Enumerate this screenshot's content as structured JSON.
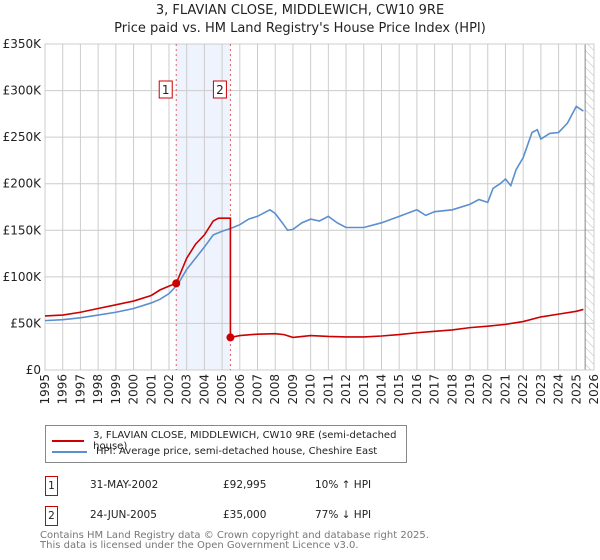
{
  "chart_data": {
    "type": "line",
    "title": "3, FLAVIAN CLOSE, MIDDLEWICH, CW10 9RE",
    "subtitle": "Price paid vs. HM Land Registry's House Price Index (HPI)",
    "xlim": [
      1995,
      2026
    ],
    "ylim": [
      0,
      350000
    ],
    "x_ticks": [
      "1995",
      "1996",
      "1997",
      "1998",
      "1999",
      "2000",
      "2001",
      "2002",
      "2003",
      "2004",
      "2005",
      "2006",
      "2007",
      "2008",
      "2009",
      "2010",
      "2011",
      "2012",
      "2013",
      "2014",
      "2015",
      "2016",
      "2017",
      "2018",
      "2019",
      "2020",
      "2021",
      "2022",
      "2023",
      "2024",
      "2025",
      "2026"
    ],
    "y_ticks": [
      {
        "v": 0,
        "l": "£0"
      },
      {
        "v": 50000,
        "l": "£50K"
      },
      {
        "v": 100000,
        "l": "£100K"
      },
      {
        "v": 150000,
        "l": "£150K"
      },
      {
        "v": 200000,
        "l": "£200K"
      },
      {
        "v": 250000,
        "l": "£250K"
      },
      {
        "v": 300000,
        "l": "£300K"
      },
      {
        "v": 350000,
        "l": "£350K"
      }
    ],
    "grid": true,
    "series": [
      {
        "name": "3, FLAVIAN CLOSE, MIDDLEWICH, CW10 9RE (semi-detached house)",
        "color": "#cc0000",
        "x": [
          1995,
          1996,
          1997,
          1998,
          1999,
          2000,
          2001,
          2001.5,
          2002,
          2002.41,
          2003,
          2003.5,
          2004,
          2004.5,
          2004.8,
          2005.4,
          2005.47,
          2005.47,
          2006,
          2007,
          2008,
          2008.5,
          2009,
          2010,
          2011,
          2012,
          2013,
          2014,
          2015,
          2016,
          2017,
          2018,
          2019,
          2020,
          2021,
          2022,
          2023,
          2024,
          2025,
          2025.4
        ],
        "y": [
          58000,
          59000,
          62000,
          66000,
          70000,
          74000,
          80000,
          86000,
          90000,
          92995,
          120000,
          135000,
          145000,
          160000,
          163000,
          163000,
          163000,
          35000,
          37000,
          38500,
          39000,
          38000,
          35000,
          37000,
          36000,
          35500,
          35500,
          36500,
          38000,
          40000,
          41500,
          43000,
          45500,
          47000,
          49000,
          52000,
          57000,
          60000,
          63000,
          65000
        ]
      },
      {
        "name": "HPI: Average price, semi-detached house, Cheshire East",
        "color": "#5b8fd0",
        "x": [
          1995,
          1996,
          1997,
          1998,
          1999,
          2000,
          2001,
          2001.5,
          2002,
          2002.5,
          2003,
          2003.5,
          2004,
          2004.5,
          2005,
          2005.5,
          2006,
          2006.5,
          2007,
          2007.7,
          2008,
          2008.4,
          2008.7,
          2009,
          2009.5,
          2010,
          2010.5,
          2011,
          2011.5,
          2012,
          2013,
          2014,
          2015,
          2016,
          2016.5,
          2017,
          2018,
          2019,
          2019.5,
          2020,
          2020.3,
          2020.7,
          2021,
          2021.3,
          2021.6,
          2022,
          2022.5,
          2022.8,
          2023,
          2023.5,
          2024,
          2024.5,
          2025,
          2025.4
        ],
        "y": [
          53000,
          54000,
          56000,
          59000,
          62000,
          66000,
          72000,
          76000,
          82000,
          92000,
          108000,
          120000,
          132000,
          145000,
          149000,
          152000,
          156000,
          162000,
          165000,
          172000,
          168000,
          158000,
          150000,
          151000,
          158000,
          162000,
          160000,
          165000,
          158000,
          153000,
          153000,
          158000,
          165000,
          172000,
          166000,
          170000,
          172000,
          178000,
          183000,
          180000,
          195000,
          200000,
          205000,
          198000,
          215000,
          228000,
          255000,
          258000,
          248000,
          254000,
          255000,
          265000,
          283000,
          278000
        ]
      }
    ],
    "sales": [
      {
        "label": "1",
        "x": 2002.41,
        "y": 92995
      },
      {
        "label": "2",
        "x": 2005.47,
        "y": 35000
      }
    ],
    "shaded_range": [
      2002.41,
      2005.47
    ],
    "forecast_from": 2025.5
  },
  "legend": {
    "red": "3, FLAVIAN CLOSE, MIDDLEWICH, CW10 9RE (semi-detached house)",
    "blue": "HPI: Average price, semi-detached house, Cheshire East"
  },
  "transactions": [
    {
      "n": "1",
      "date": "31-MAY-2002",
      "price": "£92,995",
      "delta": "10% ↑ HPI"
    },
    {
      "n": "2",
      "date": "24-JUN-2005",
      "price": "£35,000",
      "delta": "77% ↓ HPI"
    }
  ],
  "footer": [
    "Contains HM Land Registry data © Crown copyright and database right 2025.",
    "This data is licensed under the Open Government Licence v3.0."
  ]
}
